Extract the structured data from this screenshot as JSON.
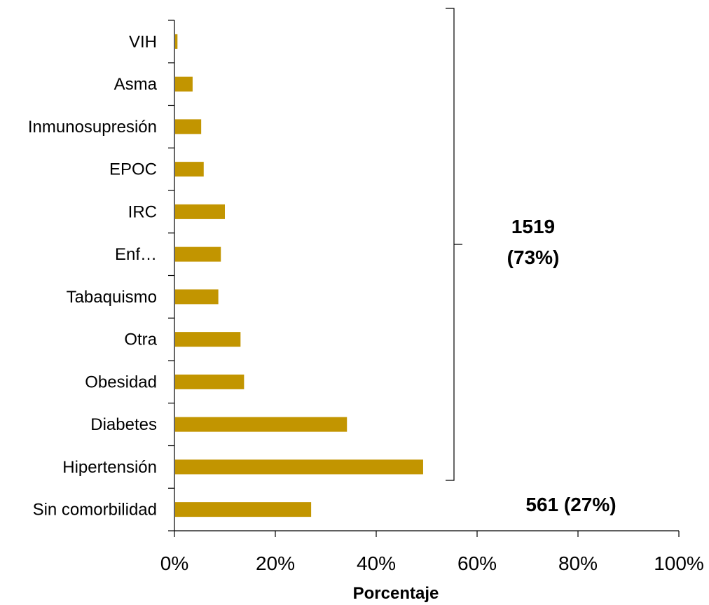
{
  "chart_data": {
    "type": "bar",
    "orientation": "horizontal",
    "categories": [
      "VIH",
      "Asma",
      "Inmunosupresión",
      "EPOC",
      "IRC",
      "Enf…",
      "Tabaquismo",
      "Otra",
      "Obesidad",
      "Diabetes",
      "Hipertensión",
      "Sin comorbilidad"
    ],
    "values": [
      0.6,
      3.6,
      5.3,
      5.8,
      10.0,
      9.2,
      8.7,
      13.1,
      13.8,
      34.2,
      49.3,
      27.1
    ],
    "bar_color": "#c29500",
    "xlim": [
      0,
      100
    ],
    "xticks": [
      "0%",
      "20%",
      "40%",
      "60%",
      "80%",
      "100%"
    ],
    "xlabel": "Porcentaje",
    "ylabel": "",
    "title": "",
    "annotations": {
      "bracket_group_line1": "1519",
      "bracket_group_line2": "(73%)",
      "no_comorbidity": "561 (27%)"
    }
  }
}
